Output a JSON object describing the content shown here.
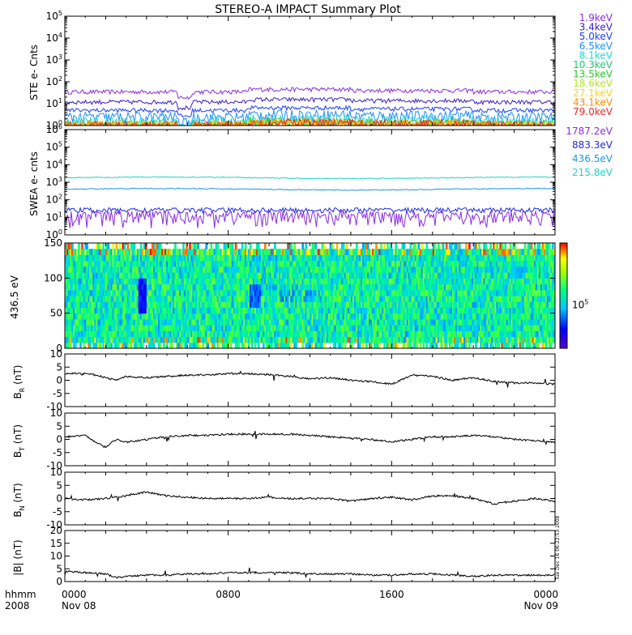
{
  "title": "STEREO-A IMPACT Summary Plot",
  "stamp": "Tue Dec 16 06:22:53 2008",
  "footer": {
    "left_top": "hhmm",
    "left_bottom": "2008",
    "ticks": [
      {
        "time": "0000",
        "date": "Nov 08"
      },
      {
        "time": "0800",
        "date": ""
      },
      {
        "time": "1600",
        "date": ""
      },
      {
        "time": "0000",
        "date": "Nov 09"
      }
    ]
  },
  "chart_data": [
    {
      "id": "ste",
      "type": "line",
      "ylabel": "STE e- Cnts",
      "yscale": "log",
      "ylim": [
        1,
        100000
      ],
      "yticks": [
        "10^0",
        "10^1",
        "10^2",
        "10^3",
        "10^4",
        "10^5"
      ],
      "xlim": [
        0,
        24
      ],
      "xlabel": "",
      "series": [
        {
          "name": "1.9keV",
          "color": "#8a2be2",
          "base": 35
        },
        {
          "name": "3.4keV",
          "color": "#3a1ec8",
          "base": 12
        },
        {
          "name": "5.0keV",
          "color": "#1e3cff",
          "base": 5
        },
        {
          "name": "6.5keV",
          "color": "#1e90ff",
          "base": 2.5
        },
        {
          "name": "8.1keV",
          "color": "#1ad9d9",
          "base": 1.5
        },
        {
          "name": "10.3keV",
          "color": "#1ec878",
          "base": 1.1
        },
        {
          "name": "13.5keV",
          "color": "#28c828",
          "base": 1.0
        },
        {
          "name": "18.6keV",
          "color": "#b4e61e",
          "base": 1.0
        },
        {
          "name": "27.1keV",
          "color": "#ffd21e",
          "base": 1.0
        },
        {
          "name": "43.1keV",
          "color": "#ff8c00",
          "base": 1.0
        },
        {
          "name": "79.0keV",
          "color": "#e62828",
          "base": 1.0
        }
      ]
    },
    {
      "id": "swea",
      "type": "line",
      "ylabel": "SWEA e- cnts",
      "yscale": "log",
      "ylim": [
        1,
        1000000
      ],
      "yticks": [
        "10^0",
        "10^1",
        "10^2",
        "10^3",
        "10^4",
        "10^5",
        "10^6"
      ],
      "xlim": [
        0,
        24
      ],
      "series": [
        {
          "name": "1787.2eV",
          "color": "#8a2be2",
          "base": 8
        },
        {
          "name": "883.3eV",
          "color": "#1e28e6",
          "base": 25
        },
        {
          "name": "436.5eV",
          "color": "#1e96e6",
          "base": 400
        },
        {
          "name": "215.8eV",
          "color": "#1ed2c8",
          "base": 1800
        }
      ]
    },
    {
      "id": "pad",
      "type": "heatmap",
      "ylabel": "436.5 eV",
      "ylim": [
        0,
        180
      ],
      "yticks": [
        "0",
        "50",
        "100",
        "150"
      ],
      "xlim": [
        0,
        24
      ],
      "colorbar": {
        "label": "10^5"
      }
    },
    {
      "id": "br",
      "type": "line",
      "ylabel": "B_R (nT)",
      "ylim": [
        -10,
        10
      ],
      "yticks": [
        "-10",
        "-5",
        "0",
        "5",
        "10"
      ],
      "xlim": [
        0,
        24
      ],
      "series": [
        {
          "name": "",
          "x": [
            0,
            1,
            1.5,
            2,
            2.5,
            3,
            4,
            5,
            6,
            7,
            8,
            9,
            10,
            11,
            12,
            13,
            14,
            15,
            16,
            17,
            18,
            19,
            20,
            21,
            22,
            23,
            24
          ],
          "y": [
            2.5,
            2.5,
            2,
            1,
            0,
            1.5,
            1,
            1.5,
            2,
            2,
            2.5,
            2.5,
            2.2,
            1.5,
            0.5,
            1,
            0,
            -0.5,
            -1.5,
            2,
            1.5,
            0,
            1,
            -0.5,
            -1,
            -1,
            -1.5
          ]
        }
      ]
    },
    {
      "id": "bt",
      "type": "line",
      "ylabel": "B_T (nT)",
      "ylim": [
        -10,
        10
      ],
      "yticks": [
        "-10",
        "-5",
        "0",
        "5",
        "10"
      ],
      "xlim": [
        0,
        24
      ],
      "series": [
        {
          "name": "",
          "x": [
            0,
            1,
            1.5,
            2,
            2.5,
            3,
            4,
            5,
            6,
            7,
            8,
            9,
            10,
            11,
            12,
            13,
            14,
            15,
            16,
            17,
            18,
            19,
            20,
            21,
            22,
            23,
            24
          ],
          "y": [
            1,
            1.5,
            -1,
            -3,
            0,
            -1,
            0,
            1,
            1.5,
            1.5,
            2,
            2,
            2,
            2,
            1.5,
            1,
            0.5,
            0,
            -1,
            0,
            1,
            1,
            1.5,
            1,
            0,
            -0.5,
            -1
          ]
        }
      ]
    },
    {
      "id": "bn",
      "type": "line",
      "ylabel": "B_N (nT)",
      "ylim": [
        -10,
        10
      ],
      "yticks": [
        "-10",
        "-5",
        "0",
        "5",
        "10"
      ],
      "xlim": [
        0,
        24
      ],
      "series": [
        {
          "name": "",
          "x": [
            0,
            1,
            2,
            3,
            4,
            5,
            6,
            7,
            8,
            9,
            10,
            11,
            12,
            13,
            14,
            15,
            16,
            17,
            18,
            19,
            20,
            21,
            22,
            23,
            24
          ],
          "y": [
            0,
            -0.5,
            0,
            1,
            2.5,
            1,
            0.5,
            0,
            0,
            0,
            0.5,
            0,
            0,
            0,
            -1,
            0,
            0.5,
            -0.5,
            1,
            1,
            0,
            -2,
            -1,
            0,
            -1
          ]
        }
      ]
    },
    {
      "id": "bmag",
      "type": "line",
      "ylabel": "|B| (nT)",
      "ylim": [
        0,
        20
      ],
      "yticks": [
        "0",
        "5",
        "10",
        "15",
        "20"
      ],
      "xlim": [
        0,
        24
      ],
      "series": [
        {
          "name": "",
          "x": [
            0,
            1,
            2,
            2.5,
            3,
            4,
            5,
            6,
            7,
            8,
            9,
            10,
            11,
            12,
            13,
            14,
            15,
            16,
            17,
            18,
            19,
            20,
            21,
            22,
            23,
            24
          ],
          "y": [
            4,
            3.5,
            3,
            1.5,
            2,
            2.5,
            2.5,
            3,
            3,
            3.5,
            3.5,
            3.5,
            3.5,
            3,
            3,
            3,
            2.5,
            2.5,
            3,
            3,
            2.5,
            2,
            2.5,
            2.5,
            2.5,
            2.5
          ]
        }
      ]
    }
  ]
}
